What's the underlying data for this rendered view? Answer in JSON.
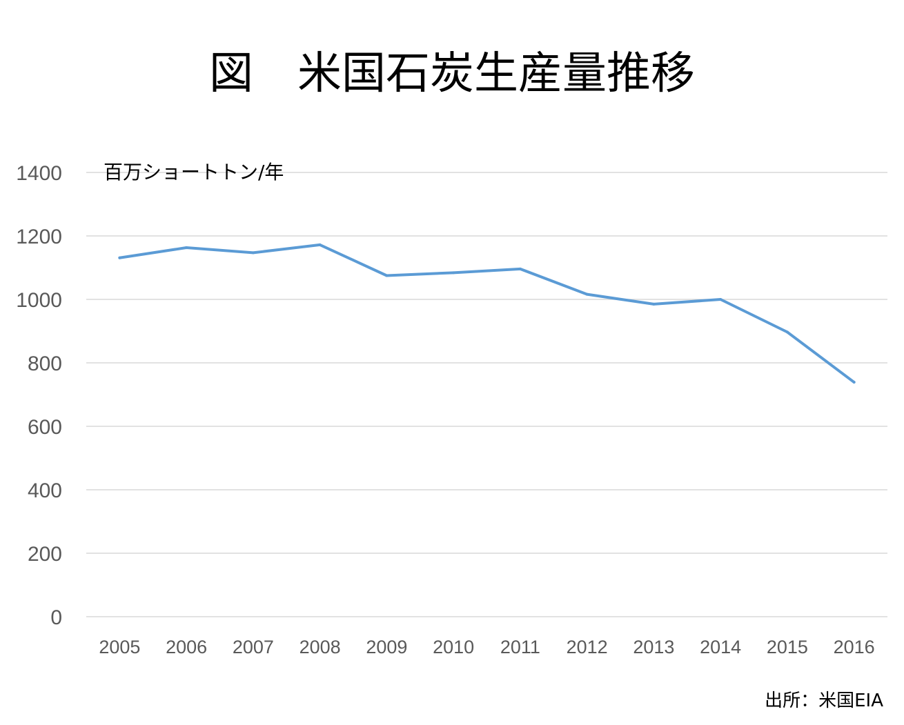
{
  "chart_data": {
    "type": "line",
    "title": "図　米国石炭生産量推移",
    "unit_label": "百万ショートトン/年",
    "source": "出所：米国EIA",
    "x": [
      "2005",
      "2006",
      "2007",
      "2008",
      "2009",
      "2010",
      "2011",
      "2012",
      "2013",
      "2014",
      "2015",
      "2016"
    ],
    "series": [
      {
        "values": [
          1131,
          1163,
          1147,
          1172,
          1075,
          1084,
          1096,
          1016,
          985,
          1000,
          897,
          739
        ],
        "color": "#5b9bd5"
      }
    ],
    "ylim": [
      0,
      1400
    ],
    "y_ticks": [
      "0",
      "200",
      "400",
      "600",
      "800",
      "1000",
      "1200",
      "1400"
    ],
    "grid": true,
    "legend": "none"
  }
}
